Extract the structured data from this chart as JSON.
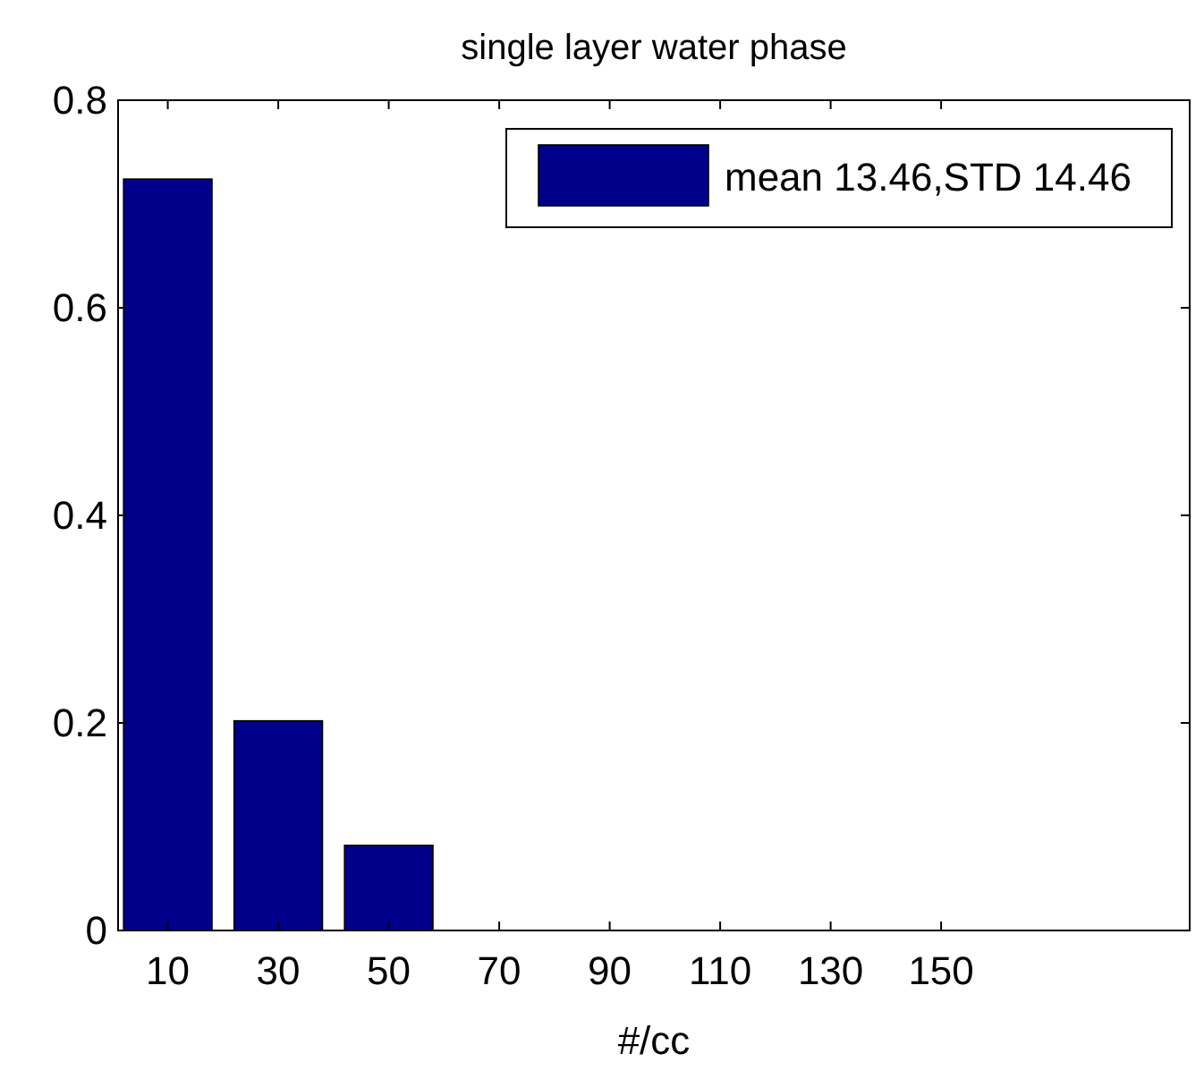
{
  "chart_data": {
    "type": "bar",
    "title": "single layer water phase",
    "xlabel": "#/cc",
    "x": [
      10,
      30,
      50,
      70,
      90,
      110,
      130,
      150
    ],
    "series": [
      {
        "name": "mean 13.46,STD 14.46",
        "color": "#00008b",
        "values": [
          0.724,
          0.202,
          0.082,
          0,
          0,
          0,
          0,
          0
        ]
      }
    ],
    "xlim": [
      1,
      195
    ],
    "xticks": [
      10,
      30,
      50,
      70,
      90,
      110,
      130,
      150
    ],
    "ylim": [
      0,
      0.8
    ],
    "yticks": [
      0,
      0.2,
      0.4,
      0.6,
      0.8
    ],
    "grid": false,
    "legend": "top right"
  }
}
